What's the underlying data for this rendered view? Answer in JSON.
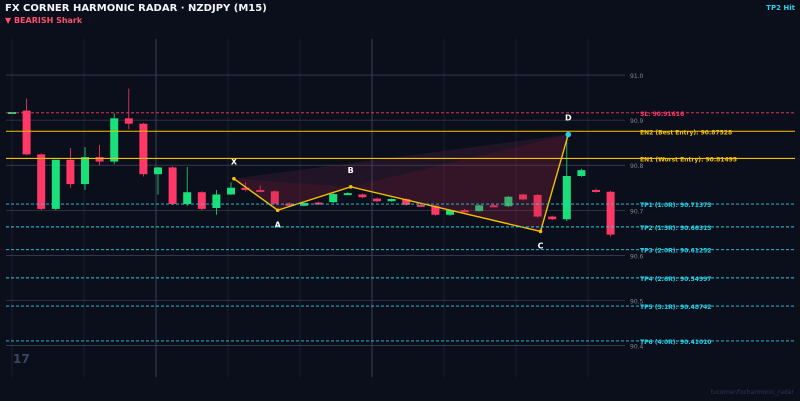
{
  "header": {
    "title": "FX CORNER HARMONIC RADAR  ·  NZDJPY (M15)",
    "direction": "▼ BEARISH  Shark",
    "status": "TP2 Hit"
  },
  "watermark": "17",
  "footer": "tvcorner/fxcharmonic_radar",
  "colors": {
    "background": "#0b0f1c",
    "bullish": "#19e07a",
    "bearish": "#ff3866",
    "pattern": "#f5c000",
    "sl": "#ff3866",
    "entry": "#f5c000",
    "tp": "#1fd1e6"
  },
  "chart_data": {
    "type": "candlestick",
    "ylim": [
      90.33,
      91.08
    ],
    "y_ticks": [
      {
        "value": 90.4,
        "label": "90.4"
      },
      {
        "value": 90.5,
        "label": "90.5"
      },
      {
        "value": 90.6,
        "label": "90.6"
      },
      {
        "value": 90.7,
        "label": "90.7"
      },
      {
        "value": 90.8,
        "label": "90.8"
      },
      {
        "value": 90.9,
        "label": "90.9"
      },
      {
        "value": 91.0,
        "label": "91.0"
      }
    ],
    "candles": [
      {
        "o": 90.915,
        "h": 90.918,
        "c": 90.918,
        "l": 90.914
      },
      {
        "o": 90.921,
        "h": 90.948,
        "c": 90.824,
        "l": 90.822
      },
      {
        "o": 90.824,
        "h": 90.826,
        "c": 90.703,
        "l": 90.7
      },
      {
        "o": 90.703,
        "h": 90.81,
        "c": 90.812,
        "l": 90.7
      },
      {
        "o": 90.812,
        "h": 90.838,
        "c": 90.758,
        "l": 90.75
      },
      {
        "o": 90.758,
        "h": 90.84,
        "c": 90.818,
        "l": 90.745
      },
      {
        "o": 90.818,
        "h": 90.845,
        "c": 90.808,
        "l": 90.8
      },
      {
        "o": 90.808,
        "h": 90.915,
        "c": 90.904,
        "l": 90.802
      },
      {
        "o": 90.904,
        "h": 90.97,
        "c": 90.892,
        "l": 90.88
      },
      {
        "o": 90.892,
        "h": 90.894,
        "c": 90.78,
        "l": 90.775
      },
      {
        "o": 90.78,
        "h": 90.796,
        "c": 90.795,
        "l": 90.735
      },
      {
        "o": 90.795,
        "h": 90.797,
        "c": 90.714,
        "l": 90.712
      },
      {
        "o": 90.714,
        "h": 90.796,
        "c": 90.74,
        "l": 90.71
      },
      {
        "o": 90.74,
        "h": 90.742,
        "c": 90.703,
        "l": 90.7
      },
      {
        "o": 90.705,
        "h": 90.745,
        "c": 90.735,
        "l": 90.69
      },
      {
        "o": 90.735,
        "h": 90.762,
        "c": 90.75,
        "l": 90.734
      },
      {
        "o": 90.75,
        "h": 90.762,
        "c": 90.745,
        "l": 90.743
      },
      {
        "o": 90.745,
        "h": 90.755,
        "c": 90.742,
        "l": 90.74
      },
      {
        "o": 90.742,
        "h": 90.744,
        "c": 90.715,
        "l": 90.713
      },
      {
        "o": 90.715,
        "h": 90.718,
        "c": 90.71,
        "l": 90.708
      },
      {
        "o": 90.71,
        "h": 90.717,
        "c": 90.716,
        "l": 90.709
      },
      {
        "o": 90.717,
        "h": 90.719,
        "c": 90.715,
        "l": 90.713
      },
      {
        "o": 90.718,
        "h": 90.738,
        "c": 90.736,
        "l": 90.716
      },
      {
        "o": 90.736,
        "h": 90.74,
        "c": 90.738,
        "l": 90.735
      },
      {
        "o": 90.735,
        "h": 90.737,
        "c": 90.729,
        "l": 90.727
      },
      {
        "o": 90.726,
        "h": 90.728,
        "c": 90.72,
        "l": 90.718
      },
      {
        "o": 90.72,
        "h": 90.726,
        "c": 90.725,
        "l": 90.719
      },
      {
        "o": 90.725,
        "h": 90.727,
        "c": 90.712,
        "l": 90.71
      },
      {
        "o": 90.712,
        "h": 90.715,
        "c": 90.71,
        "l": 90.708
      },
      {
        "o": 90.71,
        "h": 90.712,
        "c": 90.69,
        "l": 90.688
      },
      {
        "o": 90.69,
        "h": 90.702,
        "c": 90.7,
        "l": 90.688
      },
      {
        "o": 90.7,
        "h": 90.703,
        "c": 90.698,
        "l": 90.696
      },
      {
        "o": 90.698,
        "h": 90.712,
        "c": 90.711,
        "l": 90.697
      },
      {
        "o": 90.711,
        "h": 90.713,
        "c": 90.709,
        "l": 90.707
      },
      {
        "o": 90.709,
        "h": 90.732,
        "c": 90.73,
        "l": 90.707
      },
      {
        "o": 90.735,
        "h": 90.737,
        "c": 90.724,
        "l": 90.722
      },
      {
        "o": 90.734,
        "h": 90.736,
        "c": 90.686,
        "l": 90.684
      },
      {
        "o": 90.686,
        "h": 90.688,
        "c": 90.68,
        "l": 90.678
      },
      {
        "o": 90.68,
        "h": 90.864,
        "c": 90.776,
        "l": 90.676
      },
      {
        "o": 90.776,
        "h": 90.792,
        "c": 90.789,
        "l": 90.774
      },
      {
        "o": 90.745,
        "h": 90.748,
        "c": 90.741,
        "l": 90.739
      },
      {
        "o": 90.741,
        "h": 90.743,
        "c": 90.646,
        "l": 90.642
      }
    ],
    "pattern": {
      "name": "Shark",
      "points": [
        {
          "label": "X",
          "bar": 15.2,
          "price": 90.77
        },
        {
          "label": "A",
          "bar": 18.2,
          "price": 90.7
        },
        {
          "label": "B",
          "bar": 23.2,
          "price": 90.752
        },
        {
          "label": "C",
          "bar": 36.2,
          "price": 90.653
        },
        {
          "label": "D",
          "bar": 38.1,
          "price": 90.868
        }
      ]
    },
    "levels": [
      {
        "label": "SL: 90.91616",
        "price": 90.91616,
        "kind": "sl"
      },
      {
        "label": "EN2 (Best Entry): 90.87528",
        "price": 90.87528,
        "kind": "entry"
      },
      {
        "label": "EN1 (Worst Entry): 90.81495",
        "price": 90.81495,
        "kind": "entry"
      },
      {
        "label": "TP1 (1.0R): 90.71373",
        "price": 90.71373,
        "kind": "tp"
      },
      {
        "label": "TP2 (1.5R): 90.66313",
        "price": 90.66313,
        "kind": "tp"
      },
      {
        "label": "TP3 (2.0R): 90.61252",
        "price": 90.61252,
        "kind": "tp"
      },
      {
        "label": "TP4 (2.6R): 90.54997",
        "price": 90.54997,
        "kind": "tp"
      },
      {
        "label": "TP5 (3.1R): 90.48742",
        "price": 90.48742,
        "kind": "tp"
      },
      {
        "label": "TP6 (4.0R): 90.41010",
        "price": 90.4101,
        "kind": "tp"
      }
    ]
  }
}
